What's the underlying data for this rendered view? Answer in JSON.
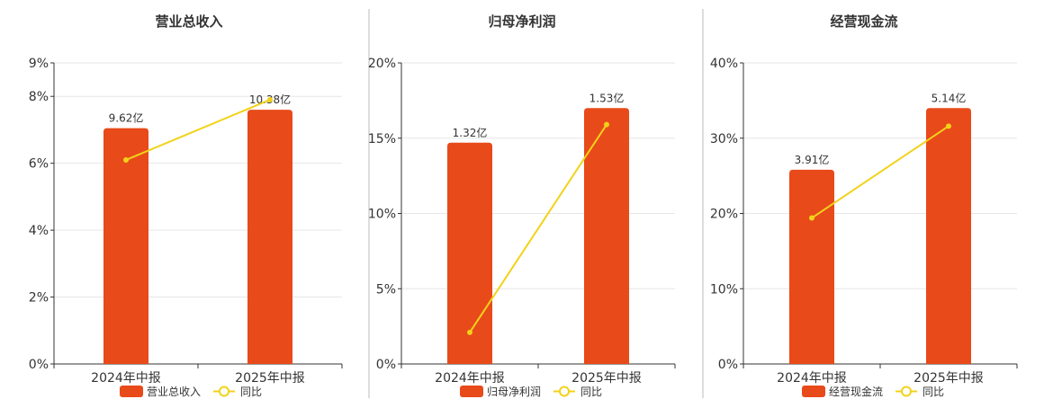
{
  "colors": {
    "bar": "#E84A1A",
    "line": "#F2D219",
    "grid": "#E6E6E6",
    "axis": "#333333",
    "divider": "#BBBBBB",
    "text": "#333333"
  },
  "legend": {
    "line_label": "同比"
  },
  "chart_data": [
    {
      "type": "bar",
      "title": "营业总收入",
      "categories": [
        "2024年中报",
        "2025年中报"
      ],
      "bar_labels": [
        "9.62亿",
        "10.38亿"
      ],
      "ylim": [
        0,
        9
      ],
      "yticks": [
        "0%",
        "2%",
        "4%",
        "6%",
        "8%",
        "9%"
      ],
      "ytick_values": [
        0,
        2,
        4,
        6,
        8,
        9
      ],
      "series": [
        {
          "name": "营业总收入",
          "kind": "bar",
          "values": [
            7.05,
            7.6
          ]
        },
        {
          "name": "同比",
          "kind": "line",
          "values": [
            6.1,
            7.9
          ]
        }
      ],
      "grid": true,
      "legend_position": "bottom"
    },
    {
      "type": "bar",
      "title": "归母净利润",
      "categories": [
        "2024年中报",
        "2025年中报"
      ],
      "bar_labels": [
        "1.32亿",
        "1.53亿"
      ],
      "ylim": [
        0,
        20
      ],
      "yticks": [
        "0%",
        "5%",
        "10%",
        "15%",
        "20%"
      ],
      "ytick_values": [
        0,
        5,
        10,
        15,
        20
      ],
      "series": [
        {
          "name": "归母净利润",
          "kind": "bar",
          "values": [
            14.7,
            17.0
          ]
        },
        {
          "name": "同比",
          "kind": "line",
          "values": [
            2.1,
            15.9
          ]
        }
      ],
      "grid": true,
      "legend_position": "bottom"
    },
    {
      "type": "bar",
      "title": "经营现金流",
      "categories": [
        "2024年中报",
        "2025年中报"
      ],
      "bar_labels": [
        "3.91亿",
        "5.14亿"
      ],
      "ylim": [
        0,
        40
      ],
      "yticks": [
        "0%",
        "10%",
        "20%",
        "30%",
        "40%"
      ],
      "ytick_values": [
        0,
        10,
        20,
        30,
        40
      ],
      "series": [
        {
          "name": "经营现金流",
          "kind": "bar",
          "values": [
            25.8,
            34.0
          ]
        },
        {
          "name": "同比",
          "kind": "line",
          "values": [
            19.4,
            31.6
          ]
        }
      ],
      "grid": true,
      "legend_position": "bottom"
    }
  ]
}
